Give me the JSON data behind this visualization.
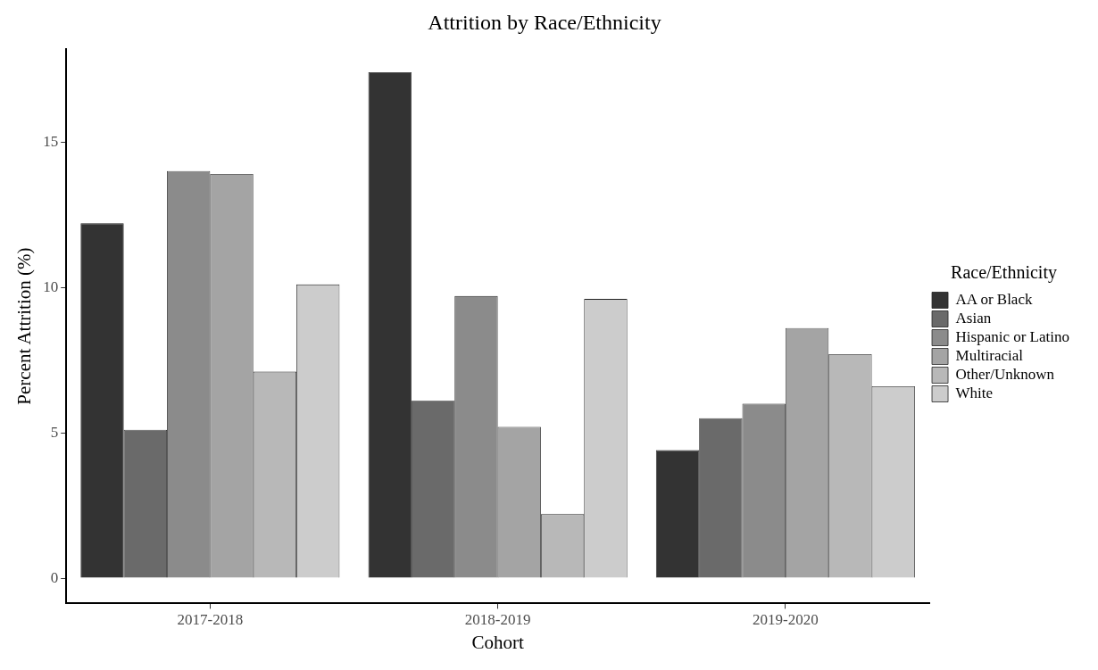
{
  "chart_data": {
    "type": "bar",
    "title": "Attrition by Race/Ethnicity",
    "xlabel": "Cohort",
    "ylabel": "Percent Attrition (%)",
    "legend_title": "Race/Ethnicity",
    "categories": [
      "2017-2018",
      "2018-2019",
      "2019-2020"
    ],
    "series": [
      {
        "name": "AA or Black",
        "color": "#333333",
        "values": [
          12.2,
          17.4,
          4.4
        ]
      },
      {
        "name": "Asian",
        "color": "#6a6a6a",
        "values": [
          5.1,
          6.1,
          5.5
        ]
      },
      {
        "name": "Hispanic or Latino",
        "color": "#8b8b8b",
        "values": [
          14.0,
          9.7,
          6.0
        ]
      },
      {
        "name": "Multiracial",
        "color": "#a4a4a4",
        "values": [
          13.9,
          5.2,
          8.6
        ]
      },
      {
        "name": "Other/Unknown",
        "color": "#b8b8b8",
        "values": [
          7.1,
          2.2,
          7.7
        ]
      },
      {
        "name": "White",
        "color": "#cccccc",
        "values": [
          10.1,
          9.6,
          6.6
        ]
      }
    ],
    "ylim": [
      -0.87,
      18.2
    ],
    "yticks": [
      0,
      5,
      10,
      15
    ],
    "grid": false,
    "legend": "right"
  }
}
